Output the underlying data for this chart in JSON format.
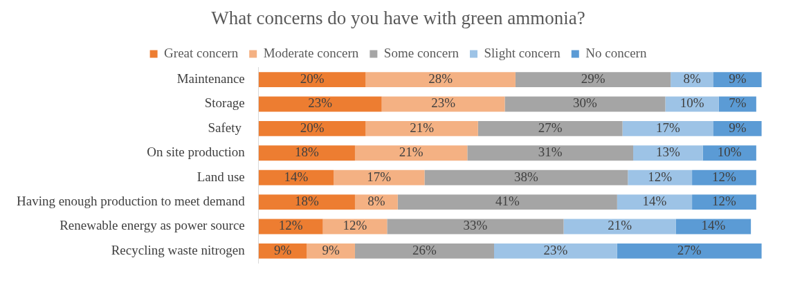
{
  "chart_data": {
    "type": "bar",
    "orientation": "horizontal",
    "stacked": true,
    "title": "What concerns do you have with green ammonia?",
    "categories": [
      "Maintenance",
      "Storage",
      "Safety ",
      "On site production",
      "Land use",
      "Having enough production to meet demand",
      "Renewable energy as power source",
      "Recycling waste nitrogen"
    ],
    "series": [
      {
        "name": "Great concern",
        "color": "#ed7d31",
        "values": [
          20,
          23,
          20,
          18,
          14,
          18,
          12,
          9
        ],
        "value_labels": [
          "20%",
          "23%",
          "20%",
          "18%",
          "14%",
          "18%",
          "12%",
          "9%"
        ]
      },
      {
        "name": "Moderate concern",
        "color": "#f4b183",
        "values": [
          28,
          23,
          21,
          21,
          17,
          8,
          12,
          9
        ],
        "value_labels": [
          "28%",
          "23%",
          "21%",
          "21%",
          "17%",
          "8%",
          "12%",
          "9%"
        ]
      },
      {
        "name": "Some concern",
        "color": "#a5a5a5",
        "values": [
          29,
          30,
          27,
          31,
          38,
          41,
          33,
          26
        ],
        "value_labels": [
          "29%",
          "30%",
          "27%",
          "31%",
          "38%",
          "41%",
          "33%",
          "26%"
        ]
      },
      {
        "name": "Slight concern",
        "color": "#9dc3e6",
        "values": [
          8,
          10,
          17,
          13,
          12,
          14,
          21,
          23
        ],
        "value_labels": [
          "8%",
          "10%",
          "17%",
          "13%",
          "12%",
          "14%",
          "21%",
          "23%"
        ]
      },
      {
        "name": "No concern",
        "color": "#5b9bd5",
        "values": [
          9,
          7,
          9,
          10,
          12,
          12,
          14,
          27
        ],
        "value_labels": [
          "9%",
          "7%",
          "9%",
          "10%",
          "12%",
          "12%",
          "14%",
          "27%"
        ]
      }
    ],
    "legend": "top",
    "grid": false,
    "tick_labels": "y"
  }
}
